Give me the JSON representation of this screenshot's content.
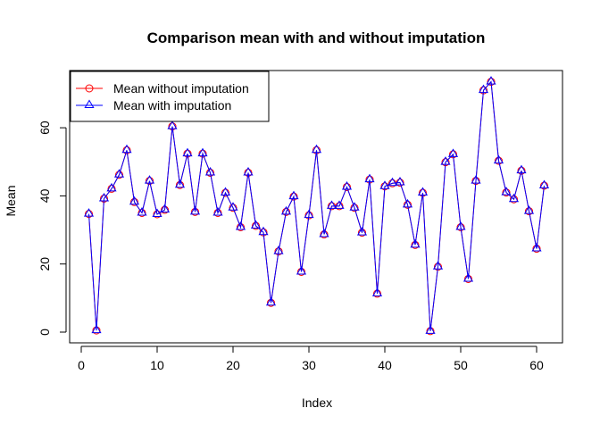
{
  "chart_data": {
    "type": "line",
    "title": "Comparison mean with and without imputation",
    "xlabel": "Index",
    "ylabel": "Mean",
    "xlim": [
      1,
      61
    ],
    "ylim": [
      0,
      73.5
    ],
    "x_ticks": [
      0,
      10,
      20,
      30,
      40,
      50,
      60
    ],
    "y_ticks": [
      0,
      20,
      40,
      60
    ],
    "grid": false,
    "legend_position": "top-left",
    "x": [
      1,
      2,
      3,
      4,
      5,
      6,
      7,
      8,
      9,
      10,
      11,
      12,
      13,
      14,
      15,
      16,
      17,
      18,
      19,
      20,
      21,
      22,
      23,
      24,
      25,
      26,
      27,
      28,
      29,
      30,
      31,
      32,
      33,
      34,
      35,
      36,
      37,
      38,
      39,
      40,
      41,
      42,
      43,
      44,
      45,
      46,
      47,
      48,
      49,
      50,
      51,
      52,
      53,
      54,
      55,
      56,
      57,
      58,
      59,
      60,
      61
    ],
    "series": [
      {
        "name": "Mean without imputation",
        "color": "#ff0000",
        "marker": "circle",
        "values": [
          34.7,
          0.5,
          39.2,
          42.1,
          46.2,
          53.4,
          38.2,
          35.0,
          44.4,
          34.6,
          35.9,
          60.4,
          43.2,
          52.4,
          35.3,
          52.4,
          46.8,
          35.0,
          40.9,
          36.5,
          30.8,
          46.8,
          31.2,
          29.3,
          8.6,
          23.7,
          35.3,
          39.8,
          17.7,
          34.3,
          53.4,
          28.7,
          37.0,
          37.0,
          42.6,
          36.5,
          29.2,
          44.8,
          11.3,
          42.8,
          43.7,
          43.9,
          37.4,
          25.6,
          40.9,
          0.3,
          19.2,
          49.9,
          52.2,
          30.8,
          15.6,
          44.4,
          71.0,
          73.5,
          50.3,
          41.0,
          39.0,
          47.4,
          35.5,
          24.5,
          43.0
        ]
      },
      {
        "name": "Mean with imputation",
        "color": "#0000ff",
        "marker": "triangle",
        "values": [
          34.7,
          0.5,
          39.2,
          42.1,
          46.2,
          53.4,
          38.2,
          35.0,
          44.4,
          34.6,
          35.9,
          60.4,
          43.2,
          52.4,
          35.3,
          52.4,
          46.8,
          35.0,
          40.9,
          36.5,
          30.8,
          46.8,
          31.2,
          29.3,
          8.6,
          23.7,
          35.3,
          39.8,
          17.7,
          34.3,
          53.4,
          28.7,
          37.0,
          37.0,
          42.6,
          36.5,
          29.2,
          44.8,
          11.3,
          42.8,
          43.7,
          43.9,
          37.4,
          25.6,
          40.9,
          0.3,
          19.2,
          49.9,
          52.2,
          30.8,
          15.6,
          44.4,
          71.0,
          73.5,
          50.3,
          41.0,
          39.0,
          47.4,
          35.5,
          24.5,
          43.0
        ]
      }
    ]
  }
}
